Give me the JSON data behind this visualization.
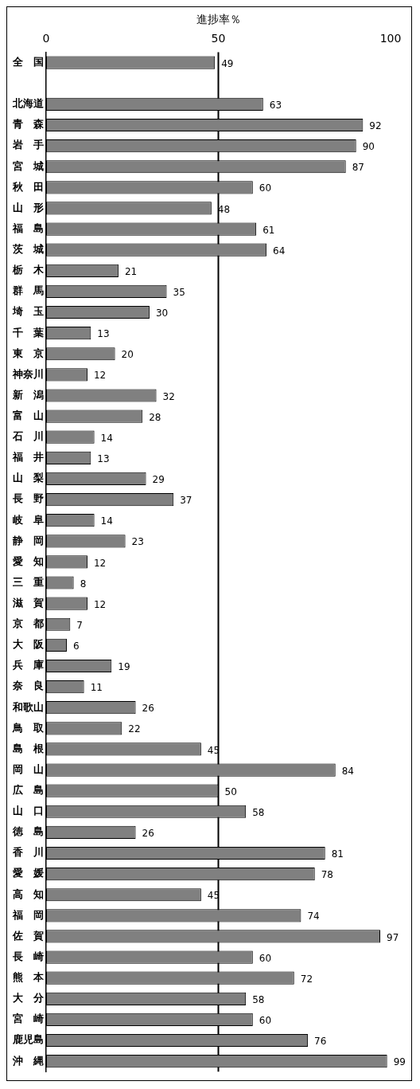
{
  "chart_data": {
    "type": "bar",
    "orientation": "horizontal",
    "xlabel": "進捗率％",
    "categories": [
      "全　国",
      null,
      "北海道",
      "青　森",
      "岩　手",
      "宮　城",
      "秋　田",
      "山　形",
      "福　島",
      "茨　城",
      "栃　木",
      "群　馬",
      "埼　玉",
      "千　葉",
      "東　京",
      "神奈川",
      "新　潟",
      "富　山",
      "石　川",
      "福　井",
      "山　梨",
      "長　野",
      "岐　阜",
      "静　岡",
      "愛　知",
      "三　重",
      "滋　賀",
      "京　都",
      "大　阪",
      "兵　庫",
      "奈　良",
      "和歌山",
      "鳥　取",
      "島　根",
      "岡　山",
      "広　島",
      "山　口",
      "徳　島",
      "香　川",
      "愛　媛",
      "高　知",
      "福　岡",
      "佐　賀",
      "長　崎",
      "熊　本",
      "大　分",
      "宮　崎",
      "鹿児島",
      "沖　縄"
    ],
    "values": [
      49,
      null,
      63,
      92,
      90,
      87,
      60,
      48,
      61,
      64,
      21,
      35,
      30,
      13,
      20,
      12,
      32,
      28,
      14,
      13,
      29,
      37,
      14,
      23,
      12,
      8,
      12,
      7,
      6,
      19,
      11,
      26,
      22,
      45,
      84,
      50,
      58,
      26,
      81,
      78,
      45,
      74,
      97,
      60,
      72,
      58,
      60,
      76,
      99
    ],
    "color": "#808080",
    "xlim": [
      0,
      100
    ],
    "xticks": [
      0,
      50,
      100
    ],
    "grid": false,
    "legend": false,
    "data_labels": true,
    "ref_lines": [
      {
        "axis": "x",
        "value": 50,
        "label": null,
        "color": "#000000"
      }
    ]
  }
}
